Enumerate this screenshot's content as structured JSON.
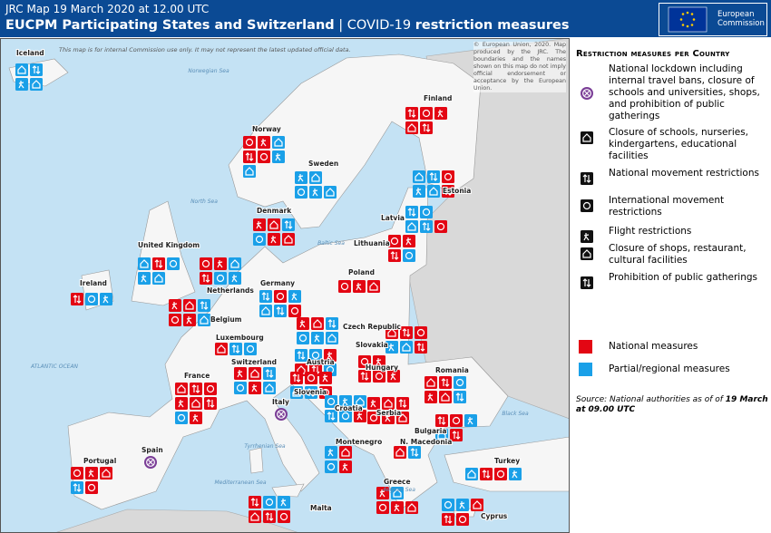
{
  "header": {
    "subtitle": "JRC Map 19 March 2020 at 12.00 UTC",
    "title_parts": [
      "EUCPM Participating States and Switzerland",
      "|",
      "COVID-19",
      "restriction measures"
    ],
    "logo": [
      "European",
      "Commission"
    ]
  },
  "map": {
    "disclaimer": "This map is for internal Commission use only. It may not represent the latest updated official data.",
    "copyright": "© European Union, 2020. Map produced by the JRC. The boundaries and the names shown on this map do not imply official endorsement or acceptance by the European Union.",
    "countries": [
      "Iceland",
      "Finland",
      "Norway",
      "Sweden",
      "Estonia",
      "Latvia",
      "Lithuania",
      "Denmark",
      "United Kingdom",
      "Ireland",
      "Netherlands",
      "Belgium",
      "Luxembourg",
      "Germany",
      "Poland",
      "Czech Republic",
      "Slovakia",
      "Austria",
      "Hungary",
      "Switzerland",
      "France",
      "Slovenia",
      "Croatia",
      "Serbia",
      "Romania",
      "Bulgaria",
      "Italy",
      "Montenegro",
      "N. Macedonia",
      "Spain",
      "Portugal",
      "Greece",
      "Turkey",
      "Malta",
      "Cyprus"
    ],
    "seas": [
      "Norwegian Sea",
      "North Sea",
      "Baltic Sea",
      "ATLANTIC OCEAN",
      "Black Sea",
      "Tyrrhenian Sea",
      "Aegean Sea",
      "Mediterranean Sea"
    ]
  },
  "legend": {
    "title": "Restriction measures per Country",
    "measures": [
      "National lockdown including internal travel bans, closure of schools and universities, shops, and prohibition of public gatherings",
      "Closure of schools, nurseries, kindergartens, educational facilities",
      "National movement restrictions",
      "International movement restrictions",
      "Flight restrictions",
      "Closure of shops, restaurant, cultural facilities",
      "Prohibition of public gatherings"
    ],
    "levels": [
      "National measures",
      "Partial/regional measures"
    ],
    "source_parts": [
      "Source: National authorities as of of",
      "19 March",
      "at 09.00 UTC"
    ]
  }
}
